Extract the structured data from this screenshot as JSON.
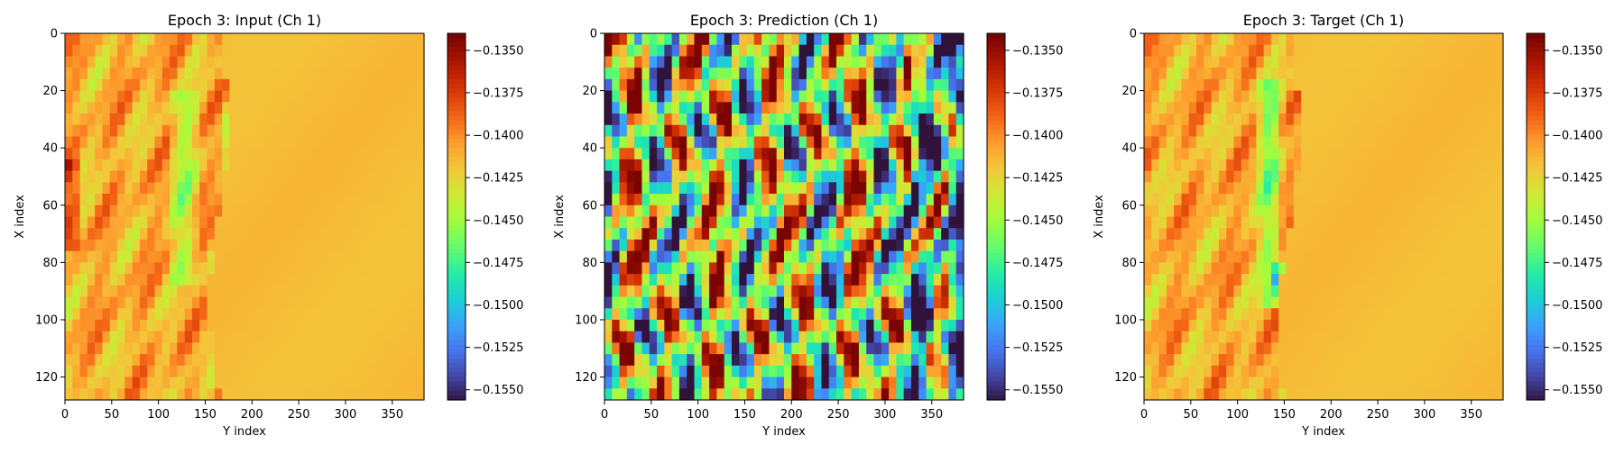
{
  "chart_data": [
    {
      "type": "heatmap",
      "title": "Epoch 3: Input (Ch 1)",
      "xlabel": "Y index",
      "ylabel": "X index",
      "xlim": [
        0,
        384
      ],
      "ylim": [
        128,
        0
      ],
      "x_ticks": [
        "0",
        "50",
        "100",
        "150",
        "200",
        "250",
        "300",
        "350"
      ],
      "y_ticks": [
        "0",
        "20",
        "40",
        "60",
        "80",
        "100",
        "120"
      ],
      "colormap": "turbo",
      "colorbar_range": [
        -0.1556,
        -0.134
      ],
      "colorbar_ticks": [
        "−0.1350",
        "−0.1375",
        "−0.1400",
        "−0.1425",
        "−0.1450",
        "−0.1475",
        "−0.1500",
        "−0.1525",
        "−0.1550"
      ],
      "field": "input"
    },
    {
      "type": "heatmap",
      "title": "Epoch 3: Prediction (Ch 1)",
      "xlabel": "Y index",
      "ylabel": "X index",
      "xlim": [
        0,
        384
      ],
      "ylim": [
        128,
        0
      ],
      "x_ticks": [
        "0",
        "50",
        "100",
        "150",
        "200",
        "250",
        "300",
        "350"
      ],
      "y_ticks": [
        "0",
        "20",
        "40",
        "60",
        "80",
        "100",
        "120"
      ],
      "colormap": "turbo",
      "colorbar_range": [
        -0.1556,
        -0.134
      ],
      "colorbar_ticks": [
        "−0.1350",
        "−0.1375",
        "−0.1400",
        "−0.1425",
        "−0.1450",
        "−0.1475",
        "−0.1500",
        "−0.1525",
        "−0.1550"
      ],
      "field": "prediction"
    },
    {
      "type": "heatmap",
      "title": "Epoch 3: Target (Ch 1)",
      "xlabel": "Y index",
      "ylabel": "X index",
      "xlim": [
        0,
        384
      ],
      "ylim": [
        128,
        0
      ],
      "x_ticks": [
        "0",
        "50",
        "100",
        "150",
        "200",
        "250",
        "300",
        "350"
      ],
      "y_ticks": [
        "0",
        "20",
        "40",
        "60",
        "80",
        "100",
        "120"
      ],
      "colormap": "turbo",
      "colorbar_range": [
        -0.1556,
        -0.134
      ],
      "colorbar_ticks": [
        "−0.1350",
        "−0.1375",
        "−0.1400",
        "−0.1425",
        "−0.1450",
        "−0.1475",
        "−0.1500",
        "−0.1525",
        "−0.1550"
      ],
      "field": "target"
    }
  ]
}
